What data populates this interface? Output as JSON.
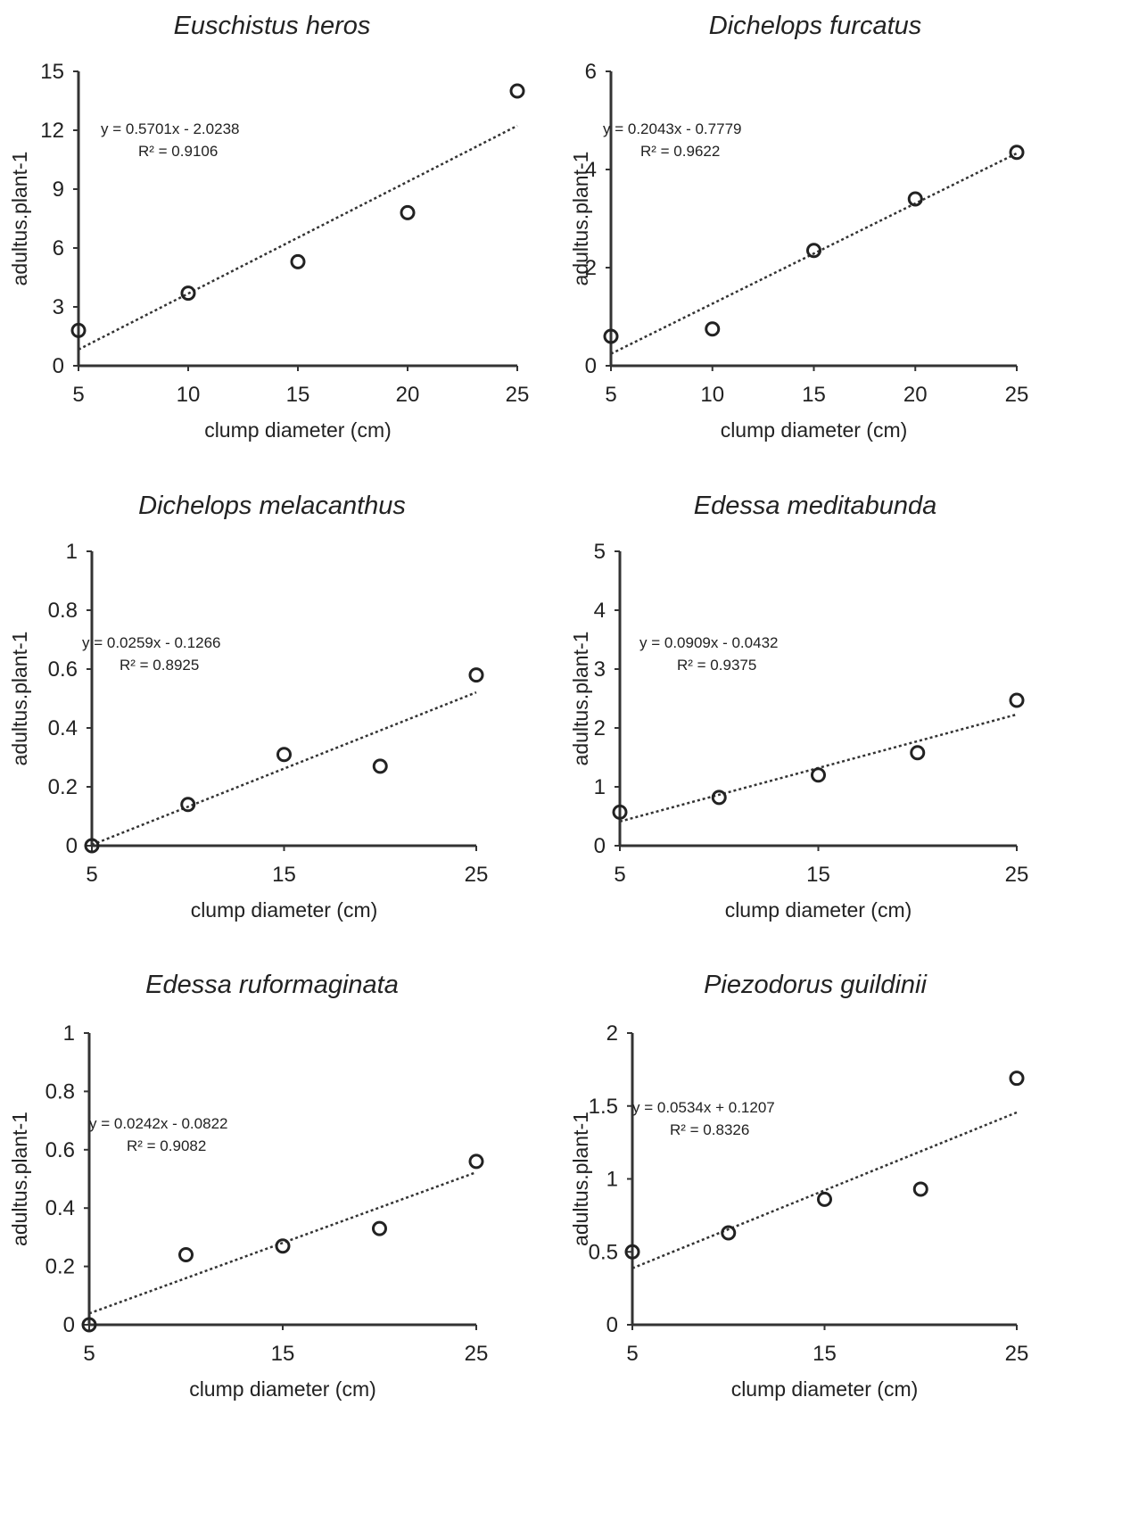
{
  "chart_data": [
    {
      "type": "scatter",
      "title": "Euschistus heros",
      "xlabel": "clump diameter (cm)",
      "ylabel": "adultus.plant-1",
      "xlim": [
        5,
        25
      ],
      "ylim": [
        0,
        15
      ],
      "xticks": [
        "5",
        "10",
        "15",
        "20",
        "25"
      ],
      "yticks": [
        "0",
        "3",
        "6",
        "9",
        "12",
        "15"
      ],
      "x": [
        5,
        10,
        15,
        20,
        25
      ],
      "y": [
        1.8,
        3.7,
        5.3,
        7.8,
        14
      ],
      "trendline": {
        "slope": 0.5701,
        "intercept": -2.0238
      },
      "equation": "y = 0.5701x - 2.0238",
      "r2": "R² = 0.9106"
    },
    {
      "type": "scatter",
      "title": "Dichelops furcatus",
      "xlabel": "clump diameter (cm)",
      "ylabel": "adultus.plant-1",
      "xlim": [
        5,
        25
      ],
      "ylim": [
        0,
        6
      ],
      "xticks": [
        "5",
        "10",
        "15",
        "20",
        "25"
      ],
      "yticks": [
        "0",
        "2",
        "4",
        "6"
      ],
      "x": [
        5,
        10,
        15,
        20,
        25
      ],
      "y": [
        0.6,
        0.75,
        2.35,
        3.4,
        4.35
      ],
      "trendline": {
        "slope": 0.2043,
        "intercept": -0.7779
      },
      "equation": "y = 0.2043x - 0.7779",
      "r2": "R² = 0.9622"
    },
    {
      "type": "scatter",
      "title": "Dichelops melacanthus",
      "xlabel": "clump diameter (cm)",
      "ylabel": "adultus.plant-1",
      "xlim": [
        5,
        25
      ],
      "ylim": [
        0,
        1
      ],
      "xticks": [
        "5",
        "15",
        "25"
      ],
      "yticks": [
        "0",
        "0.2",
        "0.4",
        "0.6",
        "0.8",
        "1"
      ],
      "x": [
        5,
        10,
        15,
        20,
        25
      ],
      "y": [
        0,
        0.14,
        0.31,
        0.27,
        0.58
      ],
      "trendline": {
        "slope": 0.0259,
        "intercept": -0.1266
      },
      "equation": "y = 0.0259x - 0.1266",
      "r2": "R² = 0.8925"
    },
    {
      "type": "scatter",
      "title": "Edessa meditabunda",
      "xlabel": "clump diameter (cm)",
      "ylabel": "adultus.plant-1",
      "xlim": [
        5,
        25
      ],
      "ylim": [
        0,
        5
      ],
      "xticks": [
        "5",
        "15",
        "25"
      ],
      "yticks": [
        "0",
        "1",
        "2",
        "3",
        "4",
        "5"
      ],
      "x": [
        5,
        10,
        15,
        20,
        25
      ],
      "y": [
        0.57,
        0.82,
        1.2,
        1.58,
        2.47
      ],
      "trendline": {
        "slope": 0.0909,
        "intercept": -0.0432
      },
      "equation": "y = 0.0909x - 0.0432",
      "r2": "R² = 0.9375"
    },
    {
      "type": "scatter",
      "title": "Edessa ruformaginata",
      "xlabel": "clump diameter (cm)",
      "ylabel": "adultus.plant-1",
      "xlim": [
        5,
        25
      ],
      "ylim": [
        0,
        1
      ],
      "xticks": [
        "5",
        "15",
        "25"
      ],
      "yticks": [
        "0",
        "0.2",
        "0.4",
        "0.6",
        "0.8",
        "1"
      ],
      "x": [
        5,
        10,
        15,
        20,
        25
      ],
      "y": [
        0,
        0.24,
        0.27,
        0.33,
        0.56
      ],
      "trendline": {
        "slope": 0.0242,
        "intercept": -0.0822
      },
      "equation": "y = 0.0242x - 0.0822",
      "r2": "R² = 0.9082"
    },
    {
      "type": "scatter",
      "title": "Piezodorus guildinii",
      "xlabel": "clump diameter (cm)",
      "ylabel": "adultus.plant-1",
      "xlim": [
        5,
        25
      ],
      "ylim": [
        0,
        2
      ],
      "xticks": [
        "5",
        "15",
        "25"
      ],
      "yticks": [
        "0",
        "0.5",
        "1",
        "1.5",
        "2"
      ],
      "x": [
        5,
        10,
        15,
        20,
        25
      ],
      "y": [
        0.5,
        0.63,
        0.86,
        0.93,
        1.69
      ],
      "trendline": {
        "slope": 0.0534,
        "intercept": 0.1207
      },
      "equation": "y = 0.0534x + 0.1207",
      "r2": "R² = 0.8326"
    }
  ]
}
